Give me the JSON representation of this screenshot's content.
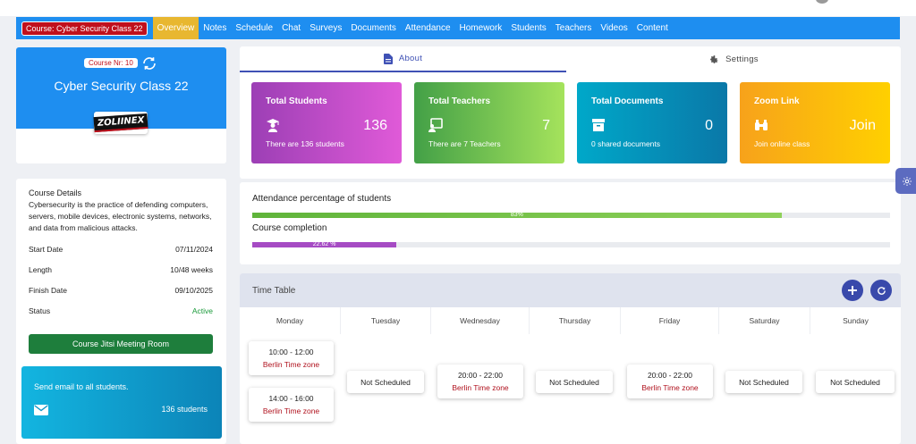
{
  "nav": {
    "course_badge": "Course: Cyber Security Class 22",
    "items": [
      "Overview",
      "Notes",
      "Schedule",
      "Chat",
      "Surveys",
      "Documents",
      "Attendance",
      "Homework",
      "Students",
      "Teachers",
      "Videos",
      "Content"
    ],
    "active_index": 0
  },
  "course": {
    "nr_label": "Course Nr: 10",
    "title": "Cyber Security Class 22",
    "logo_text": "ZOLIINEX"
  },
  "details": {
    "label": "Course Details",
    "description": "Cybersecurity is the practice of defending computers, servers, mobile devices, electronic systems, networks, and data from malicious attacks.",
    "rows": [
      {
        "key": "Start Date",
        "value": "07/11/2024"
      },
      {
        "key": "Length",
        "value": "10/48 weeks"
      },
      {
        "key": "Finish Date",
        "value": "09/10/2025"
      },
      {
        "key": "Status",
        "value": "Active"
      }
    ],
    "jitsi_button": "Course Jitsi Meeting Room",
    "email": {
      "title": "Send email to all students.",
      "count": "136 students"
    }
  },
  "tabs": {
    "about": "About",
    "settings": "Settings"
  },
  "stats": [
    {
      "title": "Total Students",
      "value": "136",
      "desc": "There are 136 students",
      "icon": "graduation-icon",
      "gradient": [
        "#9c3fb5",
        "#e05ad8"
      ]
    },
    {
      "title": "Total Teachers",
      "value": "7",
      "desc": "There are 7 Teachers",
      "icon": "teacher-board-icon",
      "gradient": [
        "#43a047",
        "#a5e35c"
      ]
    },
    {
      "title": "Total Documents",
      "value": "0",
      "desc": "0 shared documents",
      "icon": "archive-icon",
      "gradient": [
        "#00a8c9",
        "#0a78a8"
      ]
    },
    {
      "title": "Zoom Link",
      "value": "Join",
      "desc": "Join online class",
      "icon": "binoculars-icon",
      "gradient": [
        "#f7a21b",
        "#ffd000"
      ]
    }
  ],
  "progress": {
    "attendance": {
      "label": "Attendance percentage of students",
      "percent": 83,
      "text": "83%",
      "color": "#8fd15a"
    },
    "completion": {
      "label": "Course completion",
      "percent": 22.62,
      "text": "22.62 %",
      "color": "#a64bc4"
    }
  },
  "timetable": {
    "title": "Time Table",
    "days": [
      "Monday",
      "Tuesday",
      "Wednesday",
      "Thursday",
      "Friday",
      "Saturday",
      "Sunday"
    ],
    "timezone_label": "Berlin Time zone",
    "not_scheduled": "Not Scheduled",
    "slots": {
      "monday": [
        "10:00 - 12:00",
        "14:00 - 16:00"
      ],
      "wednesday": [
        "20:00 - 22:00"
      ],
      "friday": [
        "20:00 - 22:00"
      ]
    }
  }
}
